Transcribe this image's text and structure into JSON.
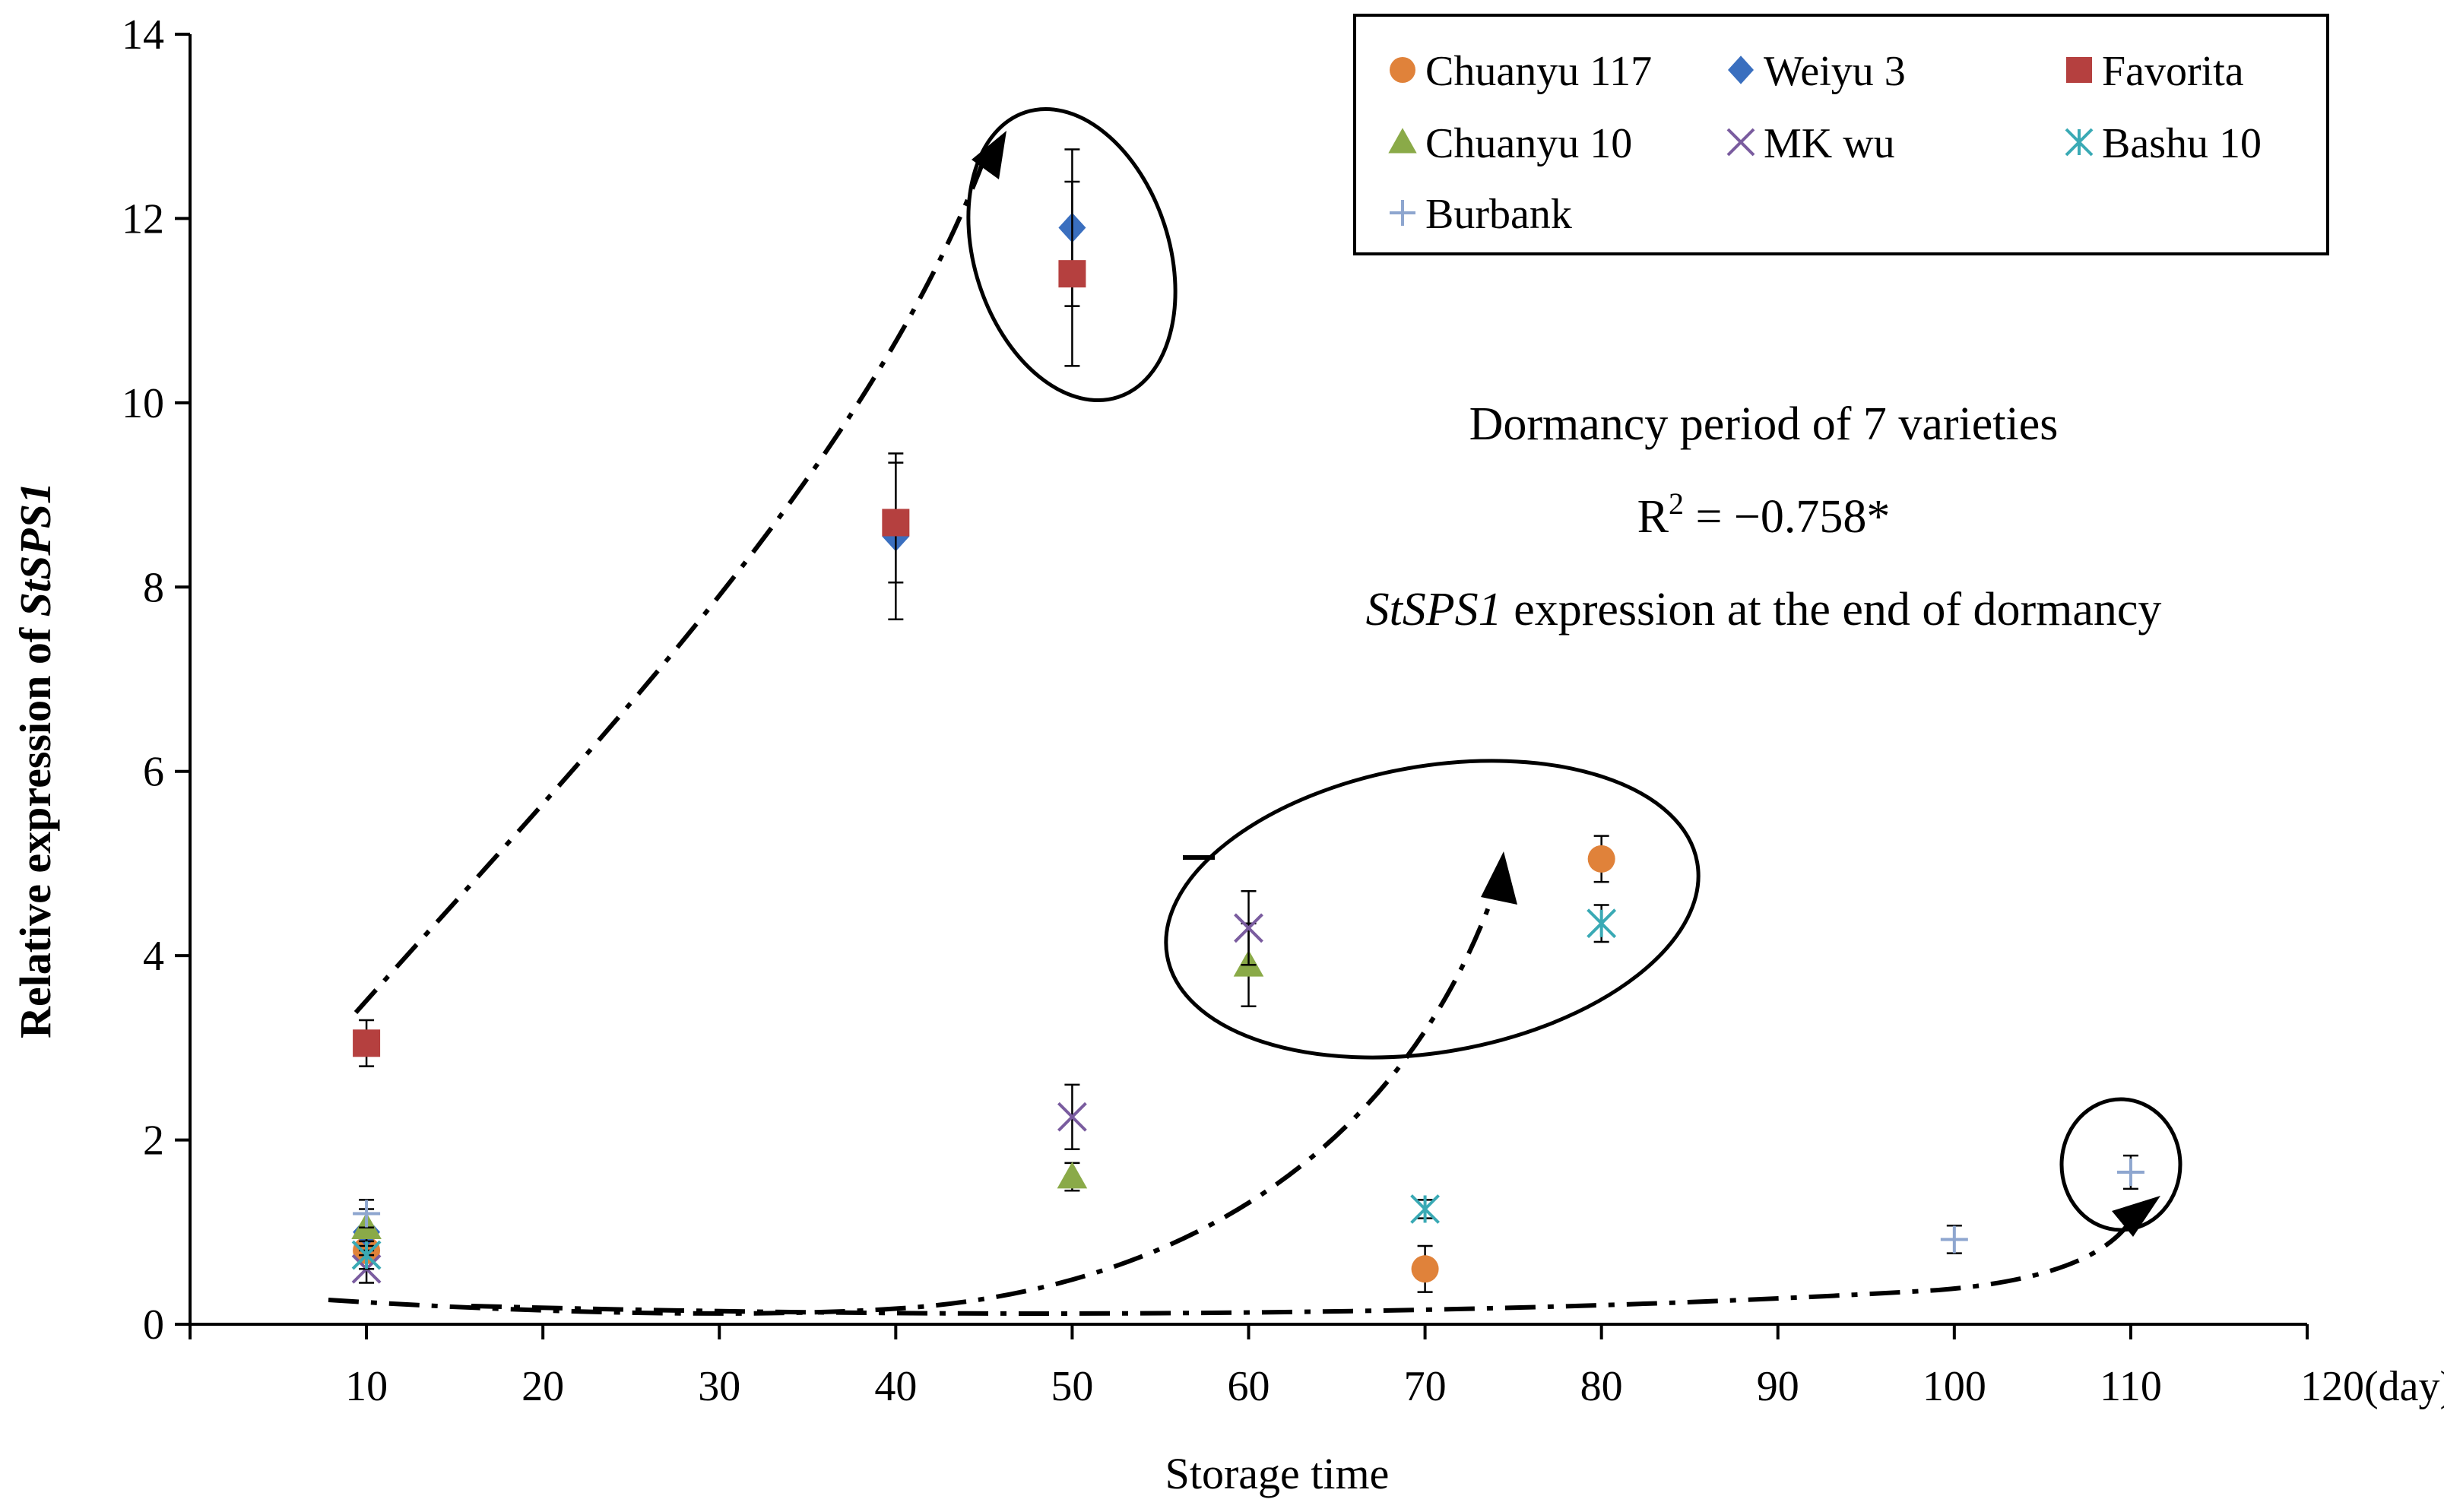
{
  "chart_data": {
    "type": "scatter",
    "title": "",
    "xlabel": "Storage time",
    "x_unit_label": "(day)",
    "ylabel_prefix": "Relative expression of ",
    "ylabel_gene": "StSPS1",
    "xlim": [
      0,
      120
    ],
    "ylim": [
      0,
      14
    ],
    "x_ticks": [
      10,
      20,
      30,
      40,
      50,
      60,
      70,
      80,
      90,
      100,
      110,
      120
    ],
    "y_ticks": [
      0,
      2,
      4,
      6,
      8,
      10,
      12,
      14
    ],
    "legend_position": "top-right",
    "series": [
      {
        "name": "Chuanyu 117",
        "marker": "circle",
        "color": "#E0823A",
        "points": [
          {
            "x": 10,
            "y": 0.8,
            "err": 0.2
          },
          {
            "x": 70,
            "y": 0.6,
            "err": 0.25
          },
          {
            "x": 80,
            "y": 5.05,
            "err": 0.25
          }
        ]
      },
      {
        "name": "Weiyu 3",
        "marker": "diamond",
        "color": "#3A6FBF",
        "points": [
          {
            "x": 10,
            "y": 1.0,
            "err": 0.2
          },
          {
            "x": 40,
            "y": 8.55,
            "err": 0.9
          },
          {
            "x": 50,
            "y": 11.9,
            "err": 0.85
          }
        ]
      },
      {
        "name": "Favorita",
        "marker": "square",
        "color": "#B5403F",
        "points": [
          {
            "x": 10,
            "y": 3.05,
            "err": 0.25
          },
          {
            "x": 40,
            "y": 8.7,
            "err": 0.65
          },
          {
            "x": 50,
            "y": 11.4,
            "err": 1.0
          }
        ]
      },
      {
        "name": "Chuanyu 10",
        "marker": "triangle",
        "color": "#8AAA48",
        "points": [
          {
            "x": 10,
            "y": 1.05,
            "err": 0.2
          },
          {
            "x": 50,
            "y": 1.6,
            "err": 0.15
          },
          {
            "x": 60,
            "y": 3.9,
            "err": 0.45
          }
        ]
      },
      {
        "name": "MK wu",
        "marker": "x",
        "color": "#7A5C9F",
        "points": [
          {
            "x": 10,
            "y": 0.6,
            "err": 0.15
          },
          {
            "x": 50,
            "y": 2.25,
            "err": 0.35
          },
          {
            "x": 60,
            "y": 4.3,
            "err": 0.4
          }
        ]
      },
      {
        "name": "Bashu 10",
        "marker": "asterisk",
        "color": "#3AAAB5",
        "points": [
          {
            "x": 10,
            "y": 0.75,
            "err": 0.15
          },
          {
            "x": 70,
            "y": 1.25,
            "err": 0.1
          },
          {
            "x": 80,
            "y": 4.35,
            "err": 0.2
          }
        ]
      },
      {
        "name": "Burbank",
        "marker": "plus",
        "color": "#8EA6CF",
        "points": [
          {
            "x": 10,
            "y": 1.2,
            "err": 0.15
          },
          {
            "x": 100,
            "y": 0.92,
            "err": 0.15
          },
          {
            "x": 110,
            "y": 1.65,
            "err": 0.18
          }
        ]
      }
    ],
    "annotations": {
      "line1": "Dormancy period of 7 varieties",
      "r2_prefix": "R",
      "r2_sup": "2",
      "r2_value": " = −0.758*",
      "line3_gene": "StSPS1",
      "line3_rest": " expression at the end of dormancy"
    }
  }
}
